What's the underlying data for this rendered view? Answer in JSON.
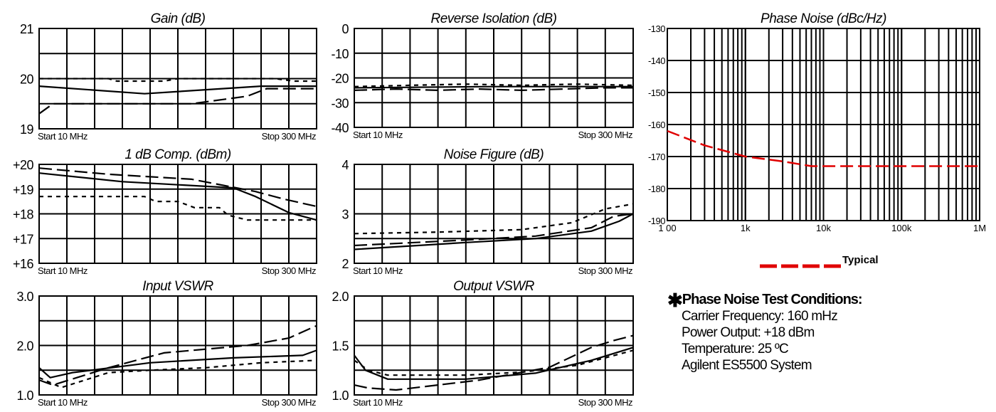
{
  "chart_data": [
    {
      "type": "line",
      "title": "Gain (dB)",
      "y_ticks": [
        "21",
        "20",
        "19"
      ],
      "ylim": [
        19,
        21
      ],
      "grid": true,
      "x_ticks": [
        "Start 10  MHz",
        "Stop  300 MHz"
      ],
      "series": [
        {
          "style": "solid",
          "x": [
            0,
            0.38,
            0.8,
            1
          ],
          "values": [
            19.85,
            19.7,
            19.85,
            19.85
          ]
        },
        {
          "style": "dashed",
          "x": [
            0,
            0.05,
            0.55,
            0.75,
            0.82,
            1
          ],
          "values": [
            19.3,
            19.5,
            19.5,
            19.65,
            19.8,
            19.8
          ]
        },
        {
          "style": "dotted",
          "x": [
            0,
            0.25,
            0.28,
            0.45,
            0.5,
            0.85,
            0.92,
            1
          ],
          "values": [
            20.0,
            20.0,
            19.95,
            19.95,
            20.0,
            20.0,
            19.95,
            19.95
          ]
        }
      ]
    },
    {
      "type": "line",
      "title": "Reverse Isolation (dB)",
      "y_ticks": [
        "0",
        "-10",
        "-20",
        "-30",
        "-40"
      ],
      "ylim": [
        -40,
        0
      ],
      "grid": true,
      "x_ticks": [
        "Start 10  MHz",
        "Stop  300 MHz"
      ],
      "series": [
        {
          "style": "solid",
          "x": [
            0,
            0.5,
            1
          ],
          "values": [
            -24,
            -23.5,
            -23.5
          ]
        },
        {
          "style": "dashed",
          "x": [
            0,
            0.15,
            0.3,
            0.45,
            0.6,
            0.75,
            0.9,
            1
          ],
          "values": [
            -25,
            -24.5,
            -25,
            -24.5,
            -25,
            -24.5,
            -24,
            -24
          ]
        },
        {
          "style": "dotted",
          "x": [
            0,
            0.2,
            0.4,
            0.6,
            0.8,
            1
          ],
          "values": [
            -23.5,
            -23,
            -22.5,
            -23,
            -22.5,
            -23
          ]
        }
      ]
    },
    {
      "type": "line",
      "title": "Phase Noise (dBc/Hz)",
      "y_ticks": [
        "-130",
        "-140",
        "-150",
        "-160",
        "-170",
        "-180",
        "-190"
      ],
      "ylim": [
        -190,
        -130
      ],
      "x_scale": "log",
      "x_tick_values": [
        100,
        1000,
        10000,
        100000,
        1000000
      ],
      "x_ticks": [
        "1 00",
        "1k",
        "10k",
        "100k",
        "1M"
      ],
      "grid": true,
      "legend": "Typical",
      "series": [
        {
          "style": "dashed",
          "color": "#e00000",
          "x": [
            100,
            300,
            1000,
            3000,
            7000,
            1000000
          ],
          "values": [
            -162,
            -166.5,
            -170,
            -171.5,
            -173,
            -173
          ]
        }
      ]
    },
    {
      "type": "line",
      "title": "1 dB Comp. (dBm)",
      "y_ticks": [
        "+20",
        "+19",
        "+18",
        "+17",
        "+16"
      ],
      "ylim": [
        16,
        20
      ],
      "grid": true,
      "x_ticks": [
        "Start 10  MHz",
        "Stop  300 MHz"
      ],
      "series": [
        {
          "style": "solid",
          "x": [
            0,
            0.3,
            0.7,
            0.78,
            0.9,
            1
          ],
          "values": [
            19.65,
            19.3,
            19.05,
            18.7,
            18.05,
            17.75
          ]
        },
        {
          "style": "dashed",
          "x": [
            0,
            0.25,
            0.55,
            0.78,
            0.88,
            1
          ],
          "values": [
            19.85,
            19.6,
            19.4,
            18.9,
            18.6,
            18.3
          ]
        },
        {
          "style": "dotted",
          "x": [
            0,
            0.38,
            0.42,
            0.5,
            0.56,
            0.65,
            0.68,
            0.75,
            1
          ],
          "values": [
            18.7,
            18.7,
            18.5,
            18.5,
            18.25,
            18.25,
            17.95,
            17.75,
            17.75
          ]
        }
      ]
    },
    {
      "type": "line",
      "title": "Noise Figure (dB)",
      "y_ticks": [
        "4",
        "3",
        "2"
      ],
      "ylim": [
        2,
        4
      ],
      "grid": true,
      "x_ticks": [
        "Start 10  MHz",
        "Stop  300 MHz"
      ],
      "series": [
        {
          "style": "solid",
          "x": [
            0,
            0.4,
            0.65,
            0.85,
            0.95,
            1
          ],
          "values": [
            2.28,
            2.42,
            2.5,
            2.65,
            2.85,
            3.0
          ]
        },
        {
          "style": "dashed",
          "x": [
            0,
            0.4,
            0.65,
            0.85,
            0.93,
            1
          ],
          "values": [
            2.36,
            2.47,
            2.55,
            2.72,
            2.95,
            3.0
          ]
        },
        {
          "style": "dotted",
          "x": [
            0,
            0.3,
            0.6,
            0.78,
            0.9,
            1
          ],
          "values": [
            2.6,
            2.63,
            2.68,
            2.82,
            3.1,
            3.2
          ]
        }
      ]
    },
    {
      "type": "line",
      "title": "Input VSWR",
      "y_ticks": [
        "3.0",
        "2.0",
        "1.0"
      ],
      "ylim": [
        1,
        3
      ],
      "grid": true,
      "x_ticks": [
        "Start 10  MHz",
        "Stop  300 MHz"
      ],
      "series": [
        {
          "style": "solid",
          "x": [
            0,
            0.04,
            0.12,
            0.4,
            0.7,
            0.95,
            1
          ],
          "values": [
            1.55,
            1.35,
            1.45,
            1.65,
            1.75,
            1.8,
            1.9
          ]
        },
        {
          "style": "dashed",
          "x": [
            0,
            0.05,
            0.25,
            0.45,
            0.75,
            0.9,
            1
          ],
          "values": [
            1.3,
            1.2,
            1.55,
            1.85,
            2.0,
            2.15,
            2.4
          ]
        },
        {
          "style": "dotted",
          "x": [
            0,
            0.08,
            0.25,
            0.4,
            0.6,
            0.8,
            1
          ],
          "values": [
            1.35,
            1.15,
            1.45,
            1.5,
            1.55,
            1.65,
            1.7
          ]
        }
      ]
    },
    {
      "type": "line",
      "title": "Output VSWR",
      "y_ticks": [
        "2.0",
        "1.5",
        "1.0"
      ],
      "ylim": [
        1,
        2
      ],
      "grid": true,
      "x_ticks": [
        "Start 10  MHz",
        "Stop  300 MHz"
      ],
      "series": [
        {
          "style": "solid",
          "x": [
            0,
            0.04,
            0.12,
            0.4,
            0.65,
            0.85,
            1
          ],
          "values": [
            1.4,
            1.25,
            1.16,
            1.16,
            1.22,
            1.35,
            1.48
          ]
        },
        {
          "style": "dashed",
          "x": [
            0,
            0.05,
            0.15,
            0.45,
            0.7,
            0.85,
            0.93,
            1
          ],
          "values": [
            1.1,
            1.07,
            1.05,
            1.15,
            1.28,
            1.48,
            1.55,
            1.6
          ]
        },
        {
          "style": "dotted",
          "x": [
            0,
            0.05,
            0.12,
            0.4,
            0.6,
            0.8,
            1
          ],
          "values": [
            1.35,
            1.25,
            1.2,
            1.2,
            1.23,
            1.3,
            1.45
          ]
        }
      ]
    }
  ],
  "notes": {
    "title": "Phase Noise Test Conditions:",
    "lines": [
      "Carrier Frequency: 160 mHz",
      "Power Output: +18 dBm",
      "Temperature: 25 ºC",
      "Agilent ES5500 System"
    ]
  }
}
